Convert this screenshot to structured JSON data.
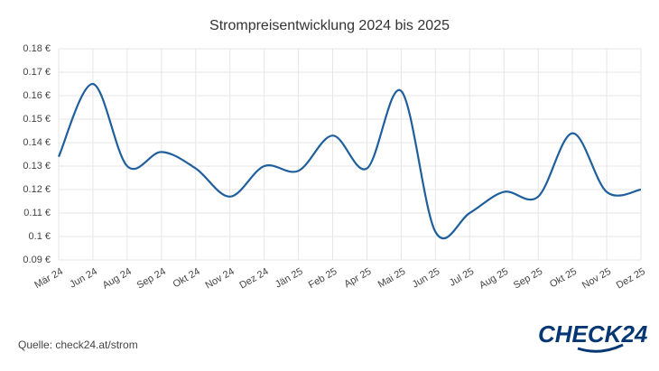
{
  "chart_data": {
    "type": "line",
    "title": "Strompreisentwicklung 2024 bis 2025",
    "categories": [
      "Mär 24",
      "Jun 24",
      "Aug 24",
      "Sep 24",
      "Okt 24",
      "Nov 24",
      "Dez 24",
      "Jän 25",
      "Feb 25",
      "Apr 25",
      "Mai 25",
      "Jun 25",
      "Jul 25",
      "Aug 25",
      "Sep 25",
      "Okt 25",
      "Nov 25",
      "Dez 25"
    ],
    "series": [
      {
        "color": "#1f5f9c",
        "values": [
          0.134,
          0.165,
          0.13,
          0.136,
          0.129,
          0.117,
          0.13,
          0.128,
          0.143,
          0.129,
          0.162,
          0.102,
          0.11,
          0.119,
          0.117,
          0.144,
          0.119,
          0.12
        ]
      }
    ],
    "ylim": [
      0.09,
      0.18
    ],
    "yticks": [
      {
        "value": 0.09,
        "label": "0.09 €"
      },
      {
        "value": 0.1,
        "label": "0.1 €"
      },
      {
        "value": 0.11,
        "label": "0.11 €"
      },
      {
        "value": 0.12,
        "label": "0.12 €"
      },
      {
        "value": 0.13,
        "label": "0.13 €"
      },
      {
        "value": 0.14,
        "label": "0.14 €"
      },
      {
        "value": 0.15,
        "label": "0.15 €"
      },
      {
        "value": 0.16,
        "label": "0.16 €"
      },
      {
        "value": 0.17,
        "label": "0.17 €"
      },
      {
        "value": 0.18,
        "label": "0.18 €"
      }
    ],
    "grid": true,
    "source": "Quelle: check24.at/strom",
    "logo": "CHECK24"
  }
}
